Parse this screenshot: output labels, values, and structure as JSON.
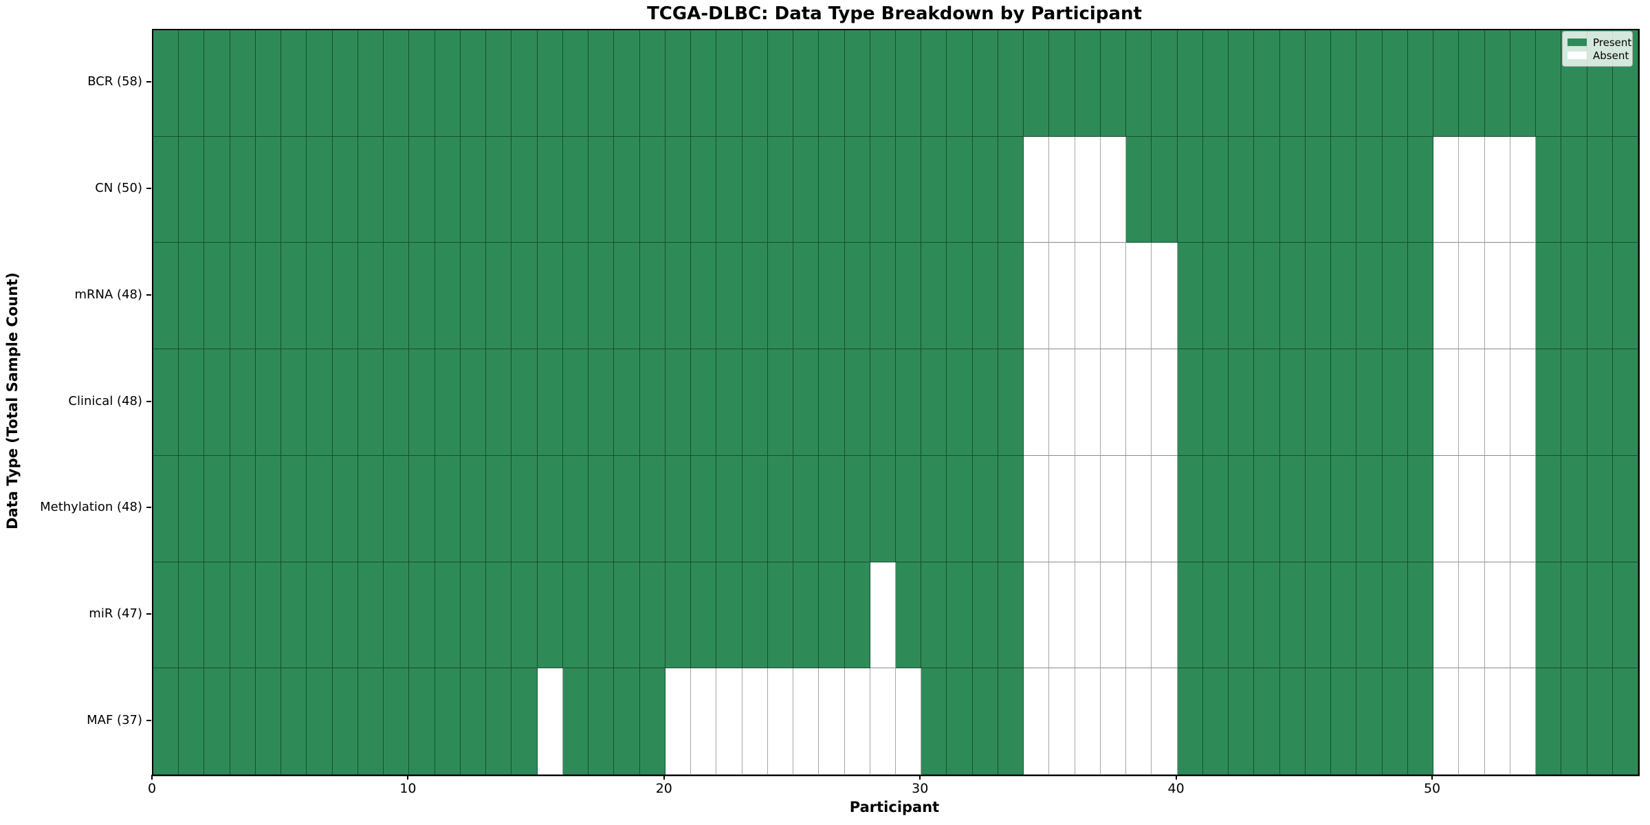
{
  "title": "TCGA-DLBC: Data Type Breakdown by Participant",
  "colors": {
    "present": "#2e8b57",
    "absent": "#ffffff",
    "cell_edge": "rgba(0,0,0,0.45)",
    "legend_border": "#b0b0b0"
  },
  "chart_data": {
    "type": "heatmap",
    "title": "TCGA-DLBC: Data Type Breakdown by Participant",
    "xlabel": "Participant",
    "ylabel": "Data Type (Total Sample Count)",
    "x_ticks": [
      0,
      10,
      20,
      30,
      40,
      50
    ],
    "x_range": [
      0,
      58
    ],
    "n_participants": 58,
    "grid": "cell borders on, black thin edges",
    "legend_position": "upper right",
    "legend_items": [
      {
        "label": "Present",
        "color": "#2e8b57"
      },
      {
        "label": "Absent",
        "color": "#ffffff"
      }
    ],
    "rows": [
      {
        "label": "BCR (58)",
        "data_type": "BCR",
        "present_count": 58,
        "absent_participants": []
      },
      {
        "label": "CN (50)",
        "data_type": "CN",
        "present_count": 50,
        "absent_participants": [
          34,
          35,
          36,
          37,
          50,
          51,
          52,
          53
        ]
      },
      {
        "label": "mRNA (48)",
        "data_type": "mRNA",
        "present_count": 48,
        "absent_participants": [
          34,
          35,
          36,
          37,
          38,
          39,
          50,
          51,
          52,
          53
        ]
      },
      {
        "label": "Clinical (48)",
        "data_type": "Clinical",
        "present_count": 48,
        "absent_participants": [
          34,
          35,
          36,
          37,
          38,
          39,
          50,
          51,
          52,
          53
        ]
      },
      {
        "label": "Methylation (48)",
        "data_type": "Methylation",
        "present_count": 48,
        "absent_participants": [
          34,
          35,
          36,
          37,
          38,
          39,
          50,
          51,
          52,
          53
        ]
      },
      {
        "label": "miR (47)",
        "data_type": "miR",
        "present_count": 47,
        "absent_participants": [
          28,
          34,
          35,
          36,
          37,
          38,
          39,
          50,
          51,
          52,
          53
        ]
      },
      {
        "label": "MAF (37)",
        "data_type": "MAF",
        "present_count": 37,
        "absent_participants": [
          15,
          20,
          21,
          22,
          23,
          24,
          25,
          26,
          27,
          28,
          29,
          34,
          35,
          36,
          37,
          38,
          39,
          50,
          51,
          52,
          53
        ]
      }
    ]
  }
}
